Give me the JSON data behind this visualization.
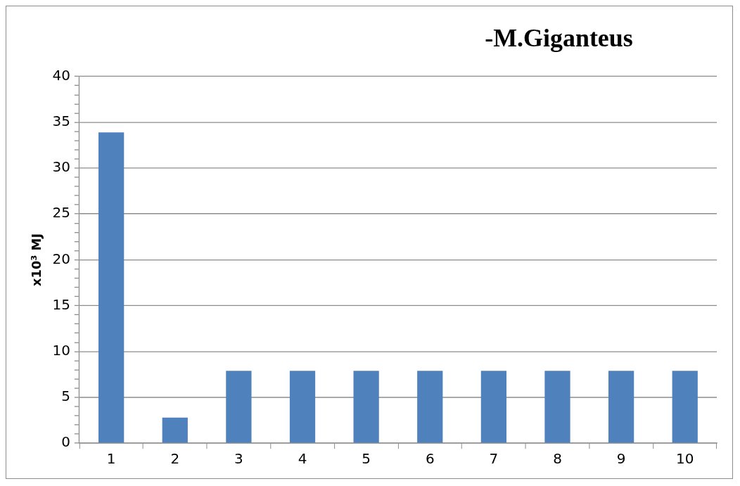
{
  "chart_data": {
    "type": "bar",
    "title": "-M.Giganteus",
    "ylabel": "x10³ MJ",
    "categories": [
      "1",
      "2",
      "3",
      "4",
      "5",
      "6",
      "7",
      "8",
      "9",
      "10"
    ],
    "values": [
      33.9,
      2.8,
      7.9,
      7.9,
      7.9,
      7.9,
      7.9,
      7.9,
      7.9,
      7.9
    ],
    "color": "#4f81bd",
    "ylim": [
      0,
      40
    ],
    "yticks": [
      0,
      {
        "value": 1,
        "label": null
      },
      {
        "value": 2,
        "label": null
      },
      {
        "value": 3,
        "label": null
      },
      {
        "value": 4,
        "label": null
      },
      5,
      {
        "value": 6,
        "label": null
      },
      {
        "value": 7,
        "label": null
      },
      {
        "value": 8,
        "label": null
      },
      {
        "value": 9,
        "label": null
      },
      10,
      {
        "value": 11,
        "label": null
      },
      {
        "value": 12,
        "label": null
      },
      {
        "value": 13,
        "label": null
      },
      {
        "value": 14,
        "label": null
      },
      15,
      {
        "value": 16,
        "label": null
      },
      {
        "value": 17,
        "label": null
      },
      {
        "value": 18,
        "label": null
      },
      {
        "value": 19,
        "label": null
      },
      20,
      {
        "value": 21,
        "label": null
      },
      {
        "value": 22,
        "label": null
      },
      {
        "value": 23,
        "label": null
      },
      {
        "value": 24,
        "label": null
      },
      25,
      {
        "value": 26,
        "label": null
      },
      {
        "value": 27,
        "label": null
      },
      {
        "value": 28,
        "label": null
      },
      {
        "value": 29,
        "label": null
      },
      30,
      {
        "value": 31,
        "label": null
      },
      {
        "value": 32,
        "label": null
      },
      {
        "value": 33,
        "label": null
      },
      {
        "value": 34,
        "label": null
      },
      35,
      {
        "value": 36,
        "label": null
      },
      {
        "value": 37,
        "label": null
      },
      {
        "value": 38,
        "label": null
      },
      {
        "value": 39,
        "label": null
      },
      40
    ],
    "grid": "y",
    "legend": false
  }
}
